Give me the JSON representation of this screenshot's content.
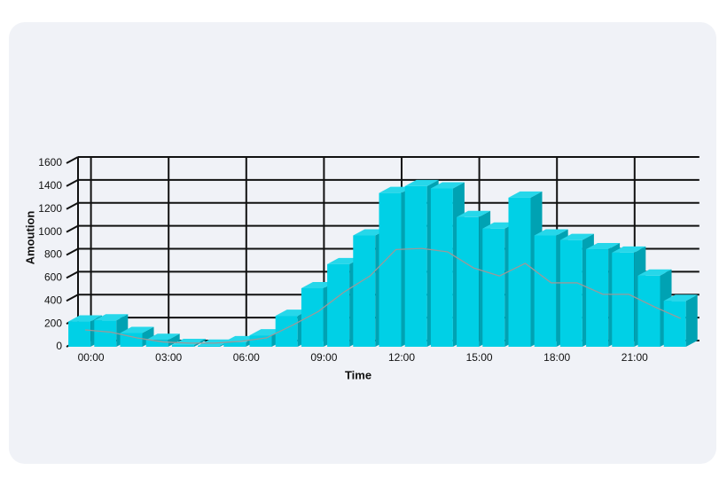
{
  "chart_data": {
    "type": "bar",
    "x_label": "Time",
    "y_label": "Amoution",
    "categories": [
      "00:00",
      null,
      null,
      "03:00",
      null,
      null,
      "06:00",
      null,
      null,
      "09:00",
      null,
      null,
      "12:00",
      null,
      null,
      "15:00",
      null,
      null,
      "18:00",
      null,
      null,
      "21:00",
      null,
      null
    ],
    "series": [
      {
        "color": "#00d0e6",
        "values": [
          220,
          230,
          120,
          60,
          15,
          10,
          40,
          100,
          270,
          510,
          720,
          970,
          1340,
          1400,
          1380,
          1130,
          1030,
          1300,
          970,
          930,
          850,
          820,
          620,
          400
        ]
      },
      {
        "type": "line",
        "color": "#9a9a9a",
        "values": [
          120,
          100,
          50,
          15,
          5,
          5,
          20,
          50,
          160,
          280,
          450,
          590,
          820,
          830,
          800,
          660,
          590,
          700,
          530,
          530,
          430,
          430,
          320,
          220
        ]
      }
    ],
    "ylim": [
      0,
      1600
    ],
    "yticks": [
      0,
      200,
      400,
      600,
      800,
      1000,
      1200,
      1400,
      1600
    ],
    "grid": true
  }
}
